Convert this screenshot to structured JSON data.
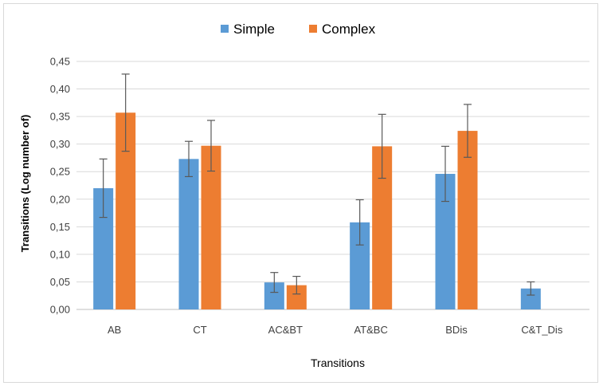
{
  "chart_data": {
    "type": "bar",
    "title": "",
    "xlabel": "Transitions",
    "ylabel": "Transitions  (Log number of)",
    "ylim": [
      0,
      0.45
    ],
    "yticks": [
      "0,00",
      "0,05",
      "0,10",
      "0,15",
      "0,20",
      "0,25",
      "0,30",
      "0,35",
      "0,40",
      "0,45"
    ],
    "categories": [
      "AB",
      "CT",
      "AC&BT",
      "AT&BC",
      "BDis",
      "C&T_Dis"
    ],
    "series": [
      {
        "name": "Simple",
        "color": "#5b9bd5",
        "values": [
          0.22,
          0.273,
          0.049,
          0.158,
          0.246,
          0.038
        ],
        "error": [
          0.053,
          0.032,
          0.018,
          0.041,
          0.05,
          0.012
        ]
      },
      {
        "name": "Complex",
        "color": "#ed7d31",
        "values": [
          0.357,
          0.297,
          0.044,
          0.296,
          0.324,
          null
        ],
        "error": [
          0.07,
          0.046,
          0.016,
          0.058,
          0.048,
          null
        ]
      }
    ],
    "grid": true,
    "legend_position": "top-center",
    "error_bars": true
  }
}
